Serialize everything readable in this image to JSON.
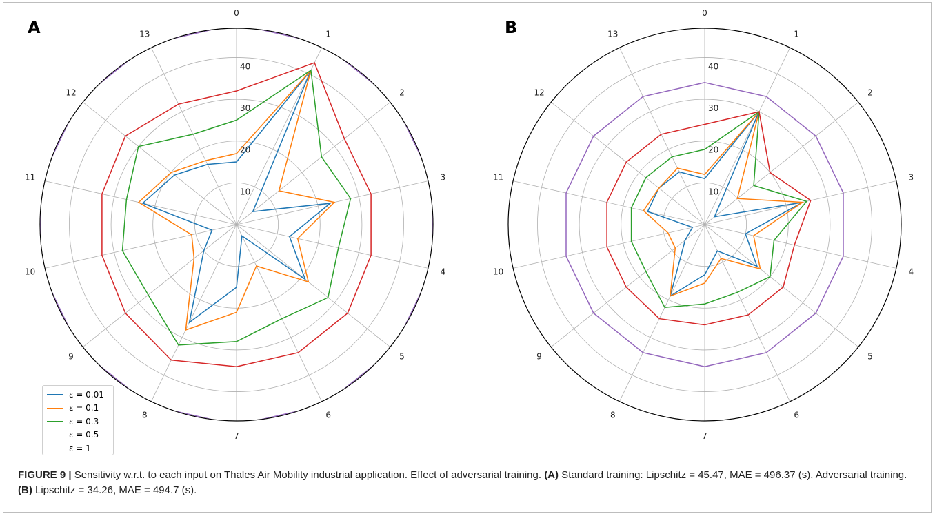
{
  "panels": {
    "a_label": "A",
    "b_label": "B"
  },
  "caption": {
    "label": "FIGURE 9 |",
    "part1": " Sensitivity w.r.t. to each input on Thales Air Mobility industrial application. Effect of adversarial training. ",
    "ref_a": "(A)",
    "part2": " Standard training: Lipschitz = 45.47, MAE = 496.37 (s), Adversarial training. ",
    "ref_b": "(B)",
    "part3": " Lipschitz = 34.26, MAE = 494.7 (s)."
  },
  "chart_data": [
    {
      "type": "radar",
      "panel": "A",
      "categories": [
        "0",
        "1",
        "2",
        "3",
        "4",
        "5",
        "6",
        "7",
        "8",
        "9",
        "10",
        "11",
        "12",
        "13"
      ],
      "radial_ticks": [
        "10",
        "20",
        "30",
        "40"
      ],
      "rlim": [
        0,
        47
      ],
      "grid": true,
      "legend": "bottom-left",
      "series": [
        {
          "name": "ε = 0.01",
          "color": "#1f77b4",
          "values": [
            15,
            41,
            5,
            23,
            13,
            21,
            3,
            15,
            26,
            10,
            6,
            23,
            19,
            16
          ]
        },
        {
          "name": "ε = 0.1",
          "color": "#ff7f0e",
          "values": [
            17,
            41,
            13,
            24,
            15,
            22,
            11,
            21,
            28,
            13,
            11,
            24,
            20,
            17
          ]
        },
        {
          "name": "ε = 0.3",
          "color": "#2ca02c",
          "values": [
            25,
            41,
            26,
            28,
            25,
            28,
            25,
            28,
            32,
            27,
            28,
            27,
            30,
            24
          ]
        },
        {
          "name": "ε = 0.5",
          "color": "#d62728",
          "values": [
            32,
            43,
            33,
            33,
            33,
            34,
            34,
            34,
            36,
            34,
            33,
            33,
            34,
            32
          ]
        },
        {
          "name": "ε = 1",
          "color": "#9467bd",
          "values": [
            48,
            48,
            48,
            48,
            48,
            48,
            48,
            48,
            48,
            48,
            48,
            48,
            48,
            48
          ]
        }
      ]
    },
    {
      "type": "radar",
      "panel": "B",
      "categories": [
        "0",
        "1",
        "2",
        "3",
        "4",
        "5",
        "6",
        "7",
        "8",
        "9",
        "10",
        "11",
        "12",
        "13"
      ],
      "radial_ticks": [
        "10",
        "20",
        "30",
        "40"
      ],
      "rlim": [
        0,
        47
      ],
      "grid": true,
      "series": [
        {
          "name": "ε = 0.01",
          "color": "#1f77b4",
          "values": [
            11,
            30,
            3,
            24,
            10,
            16,
            7,
            12,
            19,
            6,
            3,
            14,
            14,
            14
          ]
        },
        {
          "name": "ε = 0.1",
          "color": "#ff7f0e",
          "values": [
            12,
            30,
            10,
            24,
            12,
            17,
            9,
            14,
            19,
            9,
            9,
            15,
            14,
            15
          ]
        },
        {
          "name": "ε = 0.3",
          "color": "#2ca02c",
          "values": [
            18,
            30,
            15,
            25,
            17,
            20,
            18,
            19,
            22,
            18,
            18,
            18,
            18,
            18
          ]
        },
        {
          "name": "ε = 0.5",
          "color": "#d62728",
          "values": [
            24,
            30,
            20,
            26,
            22,
            24,
            24,
            24,
            25,
            24,
            24,
            24,
            24,
            24
          ]
        },
        {
          "name": "ε = 1",
          "color": "#9467bd",
          "values": [
            34,
            34,
            34,
            34,
            34,
            34,
            34,
            34,
            34,
            34,
            34,
            34,
            34,
            34
          ]
        }
      ]
    }
  ]
}
